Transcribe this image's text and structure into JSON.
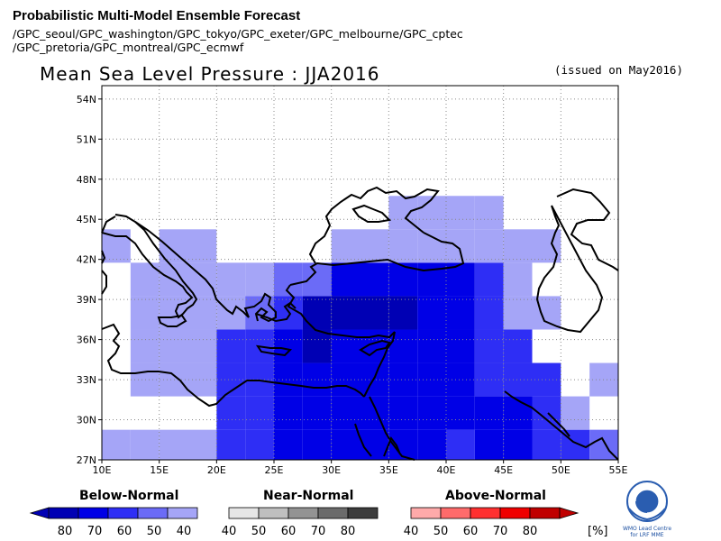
{
  "header": {
    "title": "Probabilistic Multi-Model Ensemble Forecast",
    "models_line1": "/GPC_seoul/GPC_washington/GPC_tokyo/GPC_exeter/GPC_melbourne/GPC_cptec",
    "models_line2": "/GPC_pretoria/GPC_montreal/GPC_ecmwf"
  },
  "map": {
    "title": "Mean Sea Level Pressure : JJA2016",
    "issued": "(issued on May2016)",
    "lon_range": [
      10,
      55
    ],
    "lat_range": [
      27,
      55
    ],
    "lon_ticks": [
      "10E",
      "15E",
      "20E",
      "25E",
      "30E",
      "35E",
      "40E",
      "45E",
      "50E",
      "55E"
    ],
    "lat_ticks": [
      "27N",
      "30N",
      "33N",
      "36N",
      "39N",
      "42N",
      "45N",
      "48N",
      "51N",
      "54N"
    ],
    "grid_dotted": true,
    "cell_size_deg": 2.5,
    "probability_cells_below_normal": [
      {
        "lon": 11.25,
        "lat": 28,
        "p": 40
      },
      {
        "lon": 13.75,
        "lat": 28,
        "p": 40
      },
      {
        "lon": 16.25,
        "lat": 28,
        "p": 40
      },
      {
        "lon": 18.75,
        "lat": 28,
        "p": 40
      },
      {
        "lon": 21.25,
        "lat": 28,
        "p": 60
      },
      {
        "lon": 23.75,
        "lat": 28,
        "p": 60
      },
      {
        "lon": 26.25,
        "lat": 28,
        "p": 70
      },
      {
        "lon": 28.75,
        "lat": 28,
        "p": 70
      },
      {
        "lon": 31.25,
        "lat": 28,
        "p": 70
      },
      {
        "lon": 33.75,
        "lat": 28,
        "p": 70
      },
      {
        "lon": 36.25,
        "lat": 28,
        "p": 70
      },
      {
        "lon": 38.75,
        "lat": 28,
        "p": 70
      },
      {
        "lon": 41.25,
        "lat": 28,
        "p": 60
      },
      {
        "lon": 43.75,
        "lat": 28,
        "p": 70
      },
      {
        "lon": 46.25,
        "lat": 28,
        "p": 70
      },
      {
        "lon": 48.75,
        "lat": 28,
        "p": 60
      },
      {
        "lon": 51.25,
        "lat": 28,
        "p": 60
      },
      {
        "lon": 53.75,
        "lat": 28,
        "p": 50
      },
      {
        "lon": 21.25,
        "lat": 30.5,
        "p": 60
      },
      {
        "lon": 23.75,
        "lat": 30.5,
        "p": 60
      },
      {
        "lon": 26.25,
        "lat": 30.5,
        "p": 70
      },
      {
        "lon": 28.75,
        "lat": 30.5,
        "p": 70
      },
      {
        "lon": 31.25,
        "lat": 30.5,
        "p": 70
      },
      {
        "lon": 33.75,
        "lat": 30.5,
        "p": 70
      },
      {
        "lon": 36.25,
        "lat": 30.5,
        "p": 70
      },
      {
        "lon": 38.75,
        "lat": 30.5,
        "p": 70
      },
      {
        "lon": 41.25,
        "lat": 30.5,
        "p": 70
      },
      {
        "lon": 43.75,
        "lat": 30.5,
        "p": 70
      },
      {
        "lon": 46.25,
        "lat": 30.5,
        "p": 70
      },
      {
        "lon": 48.75,
        "lat": 30.5,
        "p": 60
      },
      {
        "lon": 51.25,
        "lat": 30.5,
        "p": 40
      },
      {
        "lon": 13.75,
        "lat": 33,
        "p": 40
      },
      {
        "lon": 16.25,
        "lat": 33,
        "p": 40
      },
      {
        "lon": 18.75,
        "lat": 33,
        "p": 40
      },
      {
        "lon": 21.25,
        "lat": 33,
        "p": 60
      },
      {
        "lon": 23.75,
        "lat": 33,
        "p": 60
      },
      {
        "lon": 26.25,
        "lat": 33,
        "p": 70
      },
      {
        "lon": 28.75,
        "lat": 33,
        "p": 70
      },
      {
        "lon": 31.25,
        "lat": 33,
        "p": 70
      },
      {
        "lon": 33.75,
        "lat": 33,
        "p": 70
      },
      {
        "lon": 36.25,
        "lat": 33,
        "p": 70
      },
      {
        "lon": 38.75,
        "lat": 33,
        "p": 70
      },
      {
        "lon": 41.25,
        "lat": 33,
        "p": 70
      },
      {
        "lon": 43.75,
        "lat": 33,
        "p": 60
      },
      {
        "lon": 46.25,
        "lat": 33,
        "p": 60
      },
      {
        "lon": 48.75,
        "lat": 33,
        "p": 60
      },
      {
        "lon": 53.75,
        "lat": 33,
        "p": 40
      },
      {
        "lon": 13.75,
        "lat": 35.5,
        "p": 40
      },
      {
        "lon": 16.25,
        "lat": 35.5,
        "p": 40
      },
      {
        "lon": 18.75,
        "lat": 35.5,
        "p": 40
      },
      {
        "lon": 21.25,
        "lat": 35.5,
        "p": 60
      },
      {
        "lon": 23.75,
        "lat": 35.5,
        "p": 60
      },
      {
        "lon": 26.25,
        "lat": 35.5,
        "p": 70
      },
      {
        "lon": 28.75,
        "lat": 35.5,
        "p": 80
      },
      {
        "lon": 31.25,
        "lat": 35.5,
        "p": 70
      },
      {
        "lon": 33.75,
        "lat": 35.5,
        "p": 70
      },
      {
        "lon": 36.25,
        "lat": 35.5,
        "p": 70
      },
      {
        "lon": 38.75,
        "lat": 35.5,
        "p": 70
      },
      {
        "lon": 41.25,
        "lat": 35.5,
        "p": 70
      },
      {
        "lon": 43.75,
        "lat": 35.5,
        "p": 60
      },
      {
        "lon": 46.25,
        "lat": 35.5,
        "p": 60
      },
      {
        "lon": 13.75,
        "lat": 38,
        "p": 40
      },
      {
        "lon": 16.25,
        "lat": 38,
        "p": 40
      },
      {
        "lon": 18.75,
        "lat": 38,
        "p": 40
      },
      {
        "lon": 21.25,
        "lat": 38,
        "p": 40
      },
      {
        "lon": 23.75,
        "lat": 38,
        "p": 50
      },
      {
        "lon": 26.25,
        "lat": 38,
        "p": 60
      },
      {
        "lon": 28.75,
        "lat": 38,
        "p": 80
      },
      {
        "lon": 31.25,
        "lat": 38,
        "p": 80
      },
      {
        "lon": 33.75,
        "lat": 38,
        "p": 80
      },
      {
        "lon": 36.25,
        "lat": 38,
        "p": 80
      },
      {
        "lon": 38.75,
        "lat": 38,
        "p": 70
      },
      {
        "lon": 41.25,
        "lat": 38,
        "p": 70
      },
      {
        "lon": 43.75,
        "lat": 38,
        "p": 60
      },
      {
        "lon": 46.25,
        "lat": 38,
        "p": 40
      },
      {
        "lon": 48.75,
        "lat": 38,
        "p": 40
      },
      {
        "lon": 13.75,
        "lat": 40.5,
        "p": 40
      },
      {
        "lon": 16.25,
        "lat": 40.5,
        "p": 40
      },
      {
        "lon": 18.75,
        "lat": 40.5,
        "p": 40
      },
      {
        "lon": 21.25,
        "lat": 40.5,
        "p": 40
      },
      {
        "lon": 23.75,
        "lat": 40.5,
        "p": 40
      },
      {
        "lon": 26.25,
        "lat": 40.5,
        "p": 50
      },
      {
        "lon": 28.75,
        "lat": 40.5,
        "p": 50
      },
      {
        "lon": 31.25,
        "lat": 40.5,
        "p": 70
      },
      {
        "lon": 33.75,
        "lat": 40.5,
        "p": 70
      },
      {
        "lon": 36.25,
        "lat": 40.5,
        "p": 70
      },
      {
        "lon": 38.75,
        "lat": 40.5,
        "p": 70
      },
      {
        "lon": 41.25,
        "lat": 40.5,
        "p": 70
      },
      {
        "lon": 43.75,
        "lat": 40.5,
        "p": 60
      },
      {
        "lon": 46.25,
        "lat": 40.5,
        "p": 40
      },
      {
        "lon": 11.25,
        "lat": 43,
        "p": 40
      },
      {
        "lon": 16.25,
        "lat": 43,
        "p": 40
      },
      {
        "lon": 18.75,
        "lat": 43,
        "p": 40
      },
      {
        "lon": 31.25,
        "lat": 43,
        "p": 40
      },
      {
        "lon": 33.75,
        "lat": 43,
        "p": 40
      },
      {
        "lon": 36.25,
        "lat": 43,
        "p": 40
      },
      {
        "lon": 38.75,
        "lat": 43,
        "p": 40
      },
      {
        "lon": 41.25,
        "lat": 43,
        "p": 40
      },
      {
        "lon": 43.75,
        "lat": 43,
        "p": 40
      },
      {
        "lon": 46.25,
        "lat": 43,
        "p": 40
      },
      {
        "lon": 48.75,
        "lat": 43,
        "p": 40
      },
      {
        "lon": 36.25,
        "lat": 45.5,
        "p": 40
      },
      {
        "lon": 38.75,
        "lat": 45.5,
        "p": 40
      },
      {
        "lon": 41.25,
        "lat": 45.5,
        "p": 40
      },
      {
        "lon": 43.75,
        "lat": 45.5,
        "p": 40
      }
    ]
  },
  "legend": {
    "below": {
      "title": "Below-Normal",
      "labels": [
        "80",
        "70",
        "60",
        "50",
        "40"
      ],
      "colors": [
        "#0000b4",
        "#0000e6",
        "#2e2ef5",
        "#6b6bf7",
        "#a5a5f7"
      ]
    },
    "near": {
      "title": "Near-Normal",
      "labels": [
        "40",
        "50",
        "60",
        "70",
        "80"
      ],
      "colors": [
        "#e6e6e6",
        "#bfbfbf",
        "#939393",
        "#6b6b6b",
        "#3c3c3c"
      ]
    },
    "above": {
      "title": "Above-Normal",
      "labels": [
        "40",
        "50",
        "60",
        "70",
        "80"
      ],
      "colors": [
        "#ffaaaa",
        "#ff6b6b",
        "#ff3030",
        "#f00000",
        "#c00000"
      ]
    },
    "unit": "[%]"
  },
  "logo": {
    "text": "WMO Lead Centre for LRF MME"
  }
}
